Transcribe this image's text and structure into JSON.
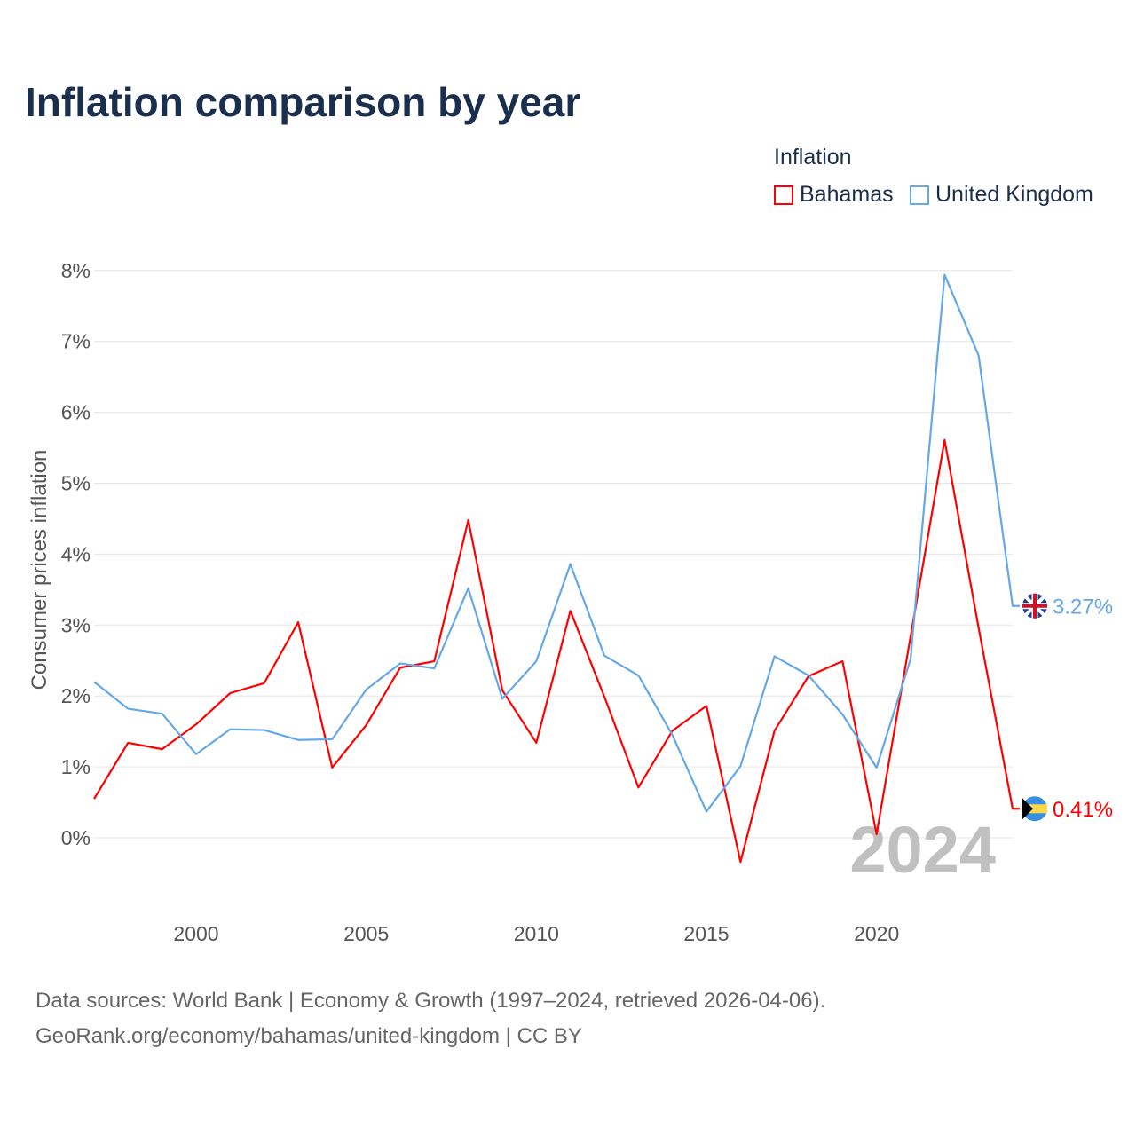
{
  "title": "Inflation comparison by year",
  "legend": {
    "title": "Inflation",
    "items": [
      {
        "label": "Bahamas",
        "color": "#ff0000"
      },
      {
        "label": "United Kingdom",
        "color": "#64a8e8"
      }
    ]
  },
  "source": {
    "line1": "Data sources: World Bank | Economy & Growth (1997–2024, retrieved 2026-04-06).",
    "line2": "GeoRank.org/economy/bahamas/united-kingdom | CC BY"
  },
  "chart_data": {
    "type": "line",
    "title": "Inflation comparison by year",
    "ylabel": "Consumer prices inflation",
    "xlabel": "",
    "year_watermark": "2024",
    "x": [
      1997,
      1998,
      1999,
      2000,
      2001,
      2002,
      2003,
      2004,
      2005,
      2006,
      2007,
      2008,
      2009,
      2010,
      2011,
      2012,
      2013,
      2014,
      2015,
      2016,
      2017,
      2018,
      2019,
      2020,
      2021,
      2022,
      2023,
      2024
    ],
    "xlim": [
      1997,
      2024
    ],
    "ylim": [
      -0.9,
      8
    ],
    "xticks": [
      2000,
      2005,
      2010,
      2015,
      2020
    ],
    "yticks": [
      0,
      1,
      2,
      3,
      4,
      5,
      6,
      7,
      8
    ],
    "ytick_labels": [
      "0%",
      "1%",
      "2%",
      "3%",
      "4%",
      "5%",
      "6%",
      "7%",
      "8%"
    ],
    "grid": true,
    "legend_position": "top-right",
    "series": [
      {
        "name": "Bahamas",
        "color": "#ff0000",
        "end_label": "0.41%",
        "values": [
          0.55,
          1.34,
          1.25,
          1.6,
          2.04,
          2.18,
          3.04,
          0.99,
          1.59,
          2.4,
          2.49,
          4.48,
          2.08,
          1.34,
          3.2,
          1.99,
          0.71,
          1.51,
          1.86,
          -0.34,
          1.51,
          2.28,
          2.49,
          0.05,
          2.84,
          5.61,
          2.96,
          0.41
        ]
      },
      {
        "name": "United Kingdom",
        "color": "#64a8e8",
        "end_label": "3.27%",
        "values": [
          2.2,
          1.82,
          1.75,
          1.18,
          1.53,
          1.52,
          1.38,
          1.39,
          2.09,
          2.46,
          2.39,
          3.52,
          1.96,
          2.49,
          3.86,
          2.57,
          2.29,
          1.45,
          0.37,
          1.01,
          2.56,
          2.29,
          1.74,
          0.99,
          2.52,
          7.94,
          6.8,
          3.27
        ]
      }
    ]
  }
}
